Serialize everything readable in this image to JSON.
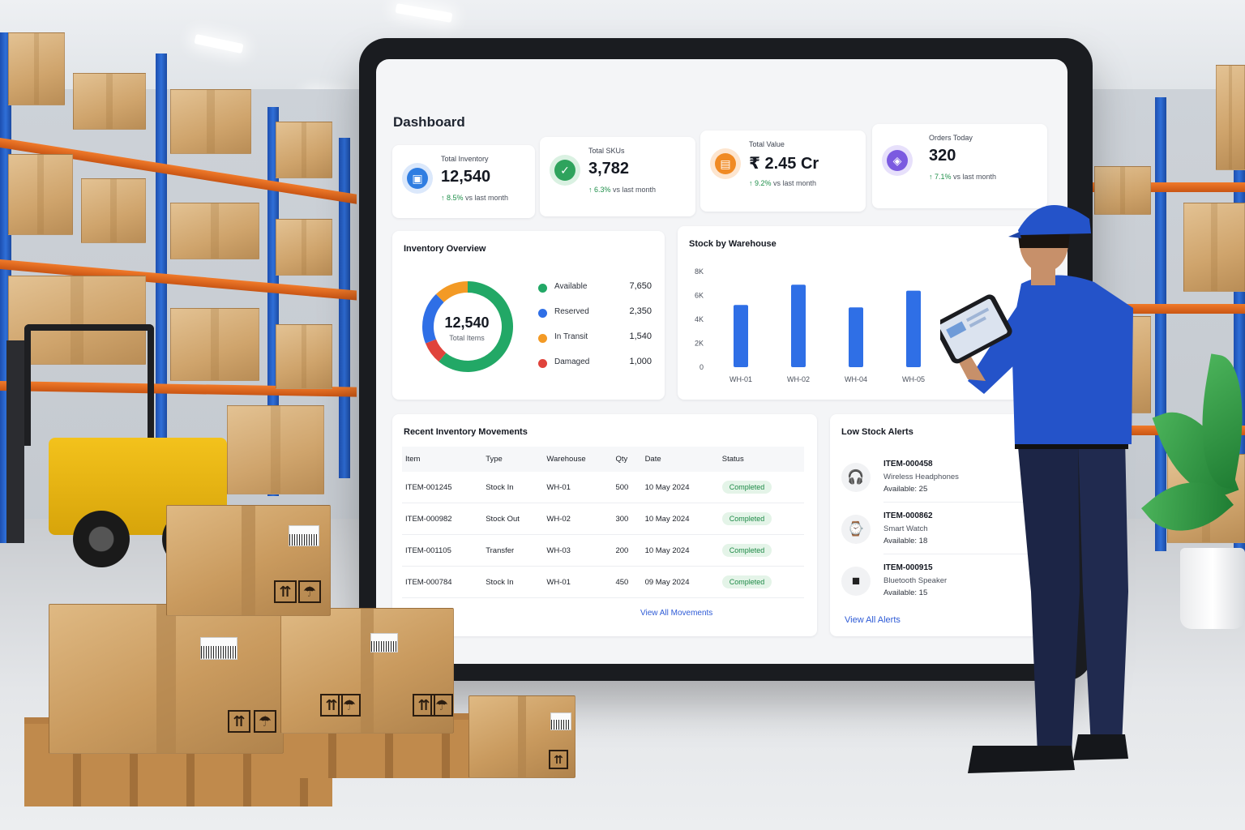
{
  "dashboard": {
    "title": "Dashboard",
    "kpis": [
      {
        "label": "Total Inventory",
        "value": "12,540",
        "trend_pct": "8.5%",
        "trend_text": "vs last month",
        "icon": "cube-icon",
        "color": "#2f7de1"
      },
      {
        "label": "Total SKUs",
        "value": "3,782",
        "trend_pct": "6.3%",
        "trend_text": "vs last month",
        "icon": "tag-icon",
        "color": "#2fa35d"
      },
      {
        "label": "Total Value",
        "value": "₹ 2.45 Cr",
        "trend_pct": "9.2%",
        "trend_text": "vs last month",
        "icon": "bag-icon",
        "color": "#f08a24"
      },
      {
        "label": "Orders Today",
        "value": "320",
        "trend_pct": "7.1%",
        "trend_text": "vs last month",
        "icon": "cart-icon",
        "color": "#7b5ae0"
      }
    ],
    "inventory_overview": {
      "title": "Inventory Overview",
      "total_value": "12,540",
      "total_label": "Total Items",
      "segments": [
        {
          "name": "Available",
          "value": "7,650",
          "color": "#22a866"
        },
        {
          "name": "Reserved",
          "value": "2,350",
          "color": "#2f6fe6"
        },
        {
          "name": "In Transit",
          "value": "1,540",
          "color": "#f39a25"
        },
        {
          "name": "Damaged",
          "value": "1,000",
          "color": "#e0433b"
        }
      ]
    },
    "movements": {
      "title": "Recent Inventory Movements",
      "columns": [
        "Item",
        "Type",
        "Warehouse",
        "Qty",
        "Date",
        "Status"
      ],
      "rows": [
        [
          "ITEM-001245",
          "Stock In",
          "WH-01",
          "500",
          "10 May 2024",
          "Completed"
        ],
        [
          "ITEM-000982",
          "Stock Out",
          "WH-02",
          "300",
          "10 May 2024",
          "Completed"
        ],
        [
          "ITEM-001105",
          "Transfer",
          "WH-03",
          "200",
          "10 May 2024",
          "Completed"
        ],
        [
          "ITEM-000784",
          "Stock In",
          "WH-01",
          "450",
          "09 May 2024",
          "Completed"
        ]
      ],
      "view_all": "View All Movements"
    },
    "alerts": {
      "title": "Low Stock Alerts",
      "items": [
        {
          "id": "ITEM-000458",
          "name": "Wireless Headphones",
          "available": "Available: 25",
          "icon": "headphones-icon"
        },
        {
          "id": "ITEM-000862",
          "name": "Smart Watch",
          "available": "Available: 18",
          "icon": "watch-icon"
        },
        {
          "id": "ITEM-000915",
          "name": "Bluetooth Speaker",
          "available": "Available: 15",
          "icon": "speaker-icon"
        }
      ],
      "view_all": "View All Alerts"
    }
  },
  "chart_data": {
    "type": "bar",
    "title": "Stock by Warehouse",
    "categories": [
      "WH-01",
      "WH-02",
      "WH-04",
      "WH-05"
    ],
    "values": [
      5200,
      6900,
      5000,
      6400
    ],
    "ylim": [
      0,
      8000
    ],
    "y_ticks": [
      "0",
      "2K",
      "4K",
      "6K",
      "8K"
    ],
    "bar_color": "#2f6fe6",
    "grid": false
  }
}
